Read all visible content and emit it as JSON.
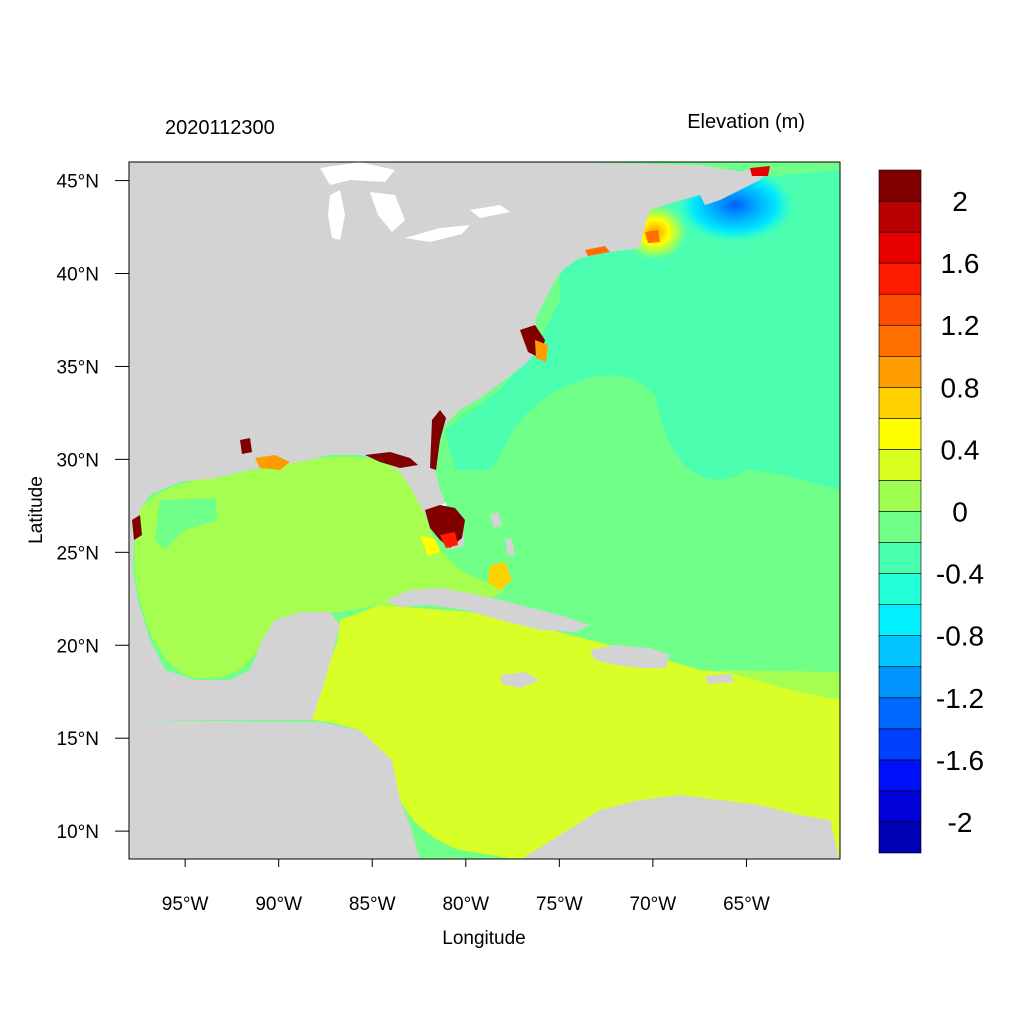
{
  "header": {
    "run_id": "2020112300",
    "variable": "Elevation (m)"
  },
  "axes": {
    "xlabel": "Longitude",
    "ylabel": "Latitude",
    "x_ticks": [
      "95°W",
      "90°W",
      "85°W",
      "80°W",
      "75°W",
      "70°W",
      "65°W"
    ],
    "x_tick_values": [
      -95,
      -90,
      -85,
      -80,
      -75,
      -70,
      -65
    ],
    "y_ticks": [
      "45°N",
      "40°N",
      "35°N",
      "30°N",
      "25°N",
      "20°N",
      "15°N",
      "10°N"
    ],
    "y_tick_values": [
      45,
      40,
      35,
      30,
      25,
      20,
      15,
      10
    ],
    "xlim": [
      -98,
      -60
    ],
    "ylim": [
      8.5,
      46
    ]
  },
  "colorbar": {
    "colors": [
      "#0000b4",
      "#0000d8",
      "#0010f8",
      "#0040ff",
      "#0068ff",
      "#0094ff",
      "#00c4ff",
      "#00f0ff",
      "#20ffd8",
      "#48ffb0",
      "#70ff88",
      "#a0ff50",
      "#d8ff20",
      "#ffff00",
      "#ffd000",
      "#ff9c00",
      "#ff7000",
      "#ff4c00",
      "#ff1c00",
      "#e80000",
      "#b80000",
      "#800000"
    ],
    "labels": [
      "2",
      "1.6",
      "1.2",
      "0.8",
      "0.4",
      "0",
      "-0.4",
      "-0.8",
      "-1.2",
      "-1.6",
      "-2"
    ]
  },
  "colors": {
    "land": "#d3d3d3",
    "gulf": "#a6ff50",
    "caribbean": "#d8ff28",
    "atlantic": "#70ff88",
    "north_atlantic": "#4cffb0",
    "nova_scotia_low": "#00c8ff",
    "high_water": "#800000",
    "surge_orange": "#ff9c00"
  }
}
